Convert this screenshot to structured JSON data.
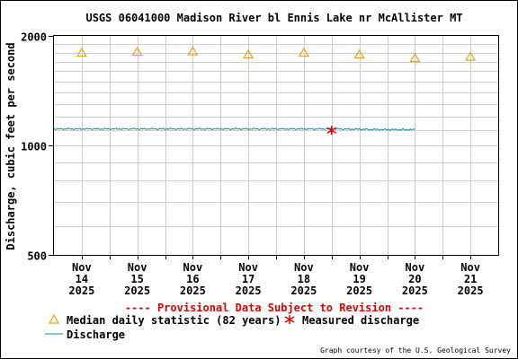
{
  "chart_data": {
    "type": "line",
    "title": "USGS 06041000 Madison River bl Ennis Lake nr McAllister MT",
    "ylabel": "Discharge, cubic feet per second",
    "xlabel": "",
    "y_scale": "log",
    "ylim": [
      500,
      2000
    ],
    "y_tick_labels": [
      "500",
      "1000",
      "2000"
    ],
    "y_minor_gridlines": [
      600,
      700,
      800,
      900,
      1100,
      1200,
      1300,
      1400,
      1500,
      1600,
      1700,
      1800,
      1900
    ],
    "x_range": [
      "2025-11-14 00:00",
      "2025-11-22 00:00"
    ],
    "x_ticks": [
      {
        "month": "Nov",
        "day": "14",
        "year": "2025"
      },
      {
        "month": "Nov",
        "day": "15",
        "year": "2025"
      },
      {
        "month": "Nov",
        "day": "16",
        "year": "2025"
      },
      {
        "month": "Nov",
        "day": "17",
        "year": "2025"
      },
      {
        "month": "Nov",
        "day": "18",
        "year": "2025"
      },
      {
        "month": "Nov",
        "day": "19",
        "year": "2025"
      },
      {
        "month": "Nov",
        "day": "20",
        "year": "2025"
      },
      {
        "month": "Nov",
        "day": "21",
        "year": "2025"
      }
    ],
    "grid": true,
    "series": [
      {
        "name": "Median daily statistic (82 years)",
        "marker": "triangle-open",
        "color": "#e8a317",
        "points": [
          {
            "x": "2025-11-14 12:00",
            "y": 1800
          },
          {
            "x": "2025-11-15 12:00",
            "y": 1810
          },
          {
            "x": "2025-11-16 12:00",
            "y": 1815
          },
          {
            "x": "2025-11-17 12:00",
            "y": 1780
          },
          {
            "x": "2025-11-18 12:00",
            "y": 1800
          },
          {
            "x": "2025-11-19 12:00",
            "y": 1780
          },
          {
            "x": "2025-11-20 12:00",
            "y": 1740
          },
          {
            "x": "2025-11-21 12:00",
            "y": 1755
          }
        ]
      },
      {
        "name": "Measured discharge",
        "marker": "asterisk",
        "color": "#dd0000",
        "points": [
          {
            "x": "2025-11-19 00:00",
            "y": 1100
          }
        ]
      },
      {
        "name": "Discharge",
        "line": true,
        "color": "#118899",
        "points": [
          {
            "x": "2025-11-13 00:00",
            "y": 1110
          },
          {
            "x": "2025-11-14 00:00",
            "y": 1110
          },
          {
            "x": "2025-11-15 00:00",
            "y": 1110
          },
          {
            "x": "2025-11-16 00:00",
            "y": 1110
          },
          {
            "x": "2025-11-17 00:00",
            "y": 1110
          },
          {
            "x": "2025-11-18 00:00",
            "y": 1110
          },
          {
            "x": "2025-11-19 00:00",
            "y": 1110
          },
          {
            "x": "2025-11-20 00:00",
            "y": 1105
          },
          {
            "x": "2025-11-20 12:00",
            "y": 1105
          }
        ]
      }
    ],
    "legend_placement": "bottom-left"
  },
  "notice": "---- Provisional Data Subject to Revision ----",
  "credit": "Graph courtesy of the U.S. Geological Survey",
  "colors": {
    "median": "#e8a317",
    "measured": "#dd0000",
    "discharge": "#118899",
    "notice": "#dd0000",
    "grid": "#cccccc",
    "frame": "#000000"
  }
}
